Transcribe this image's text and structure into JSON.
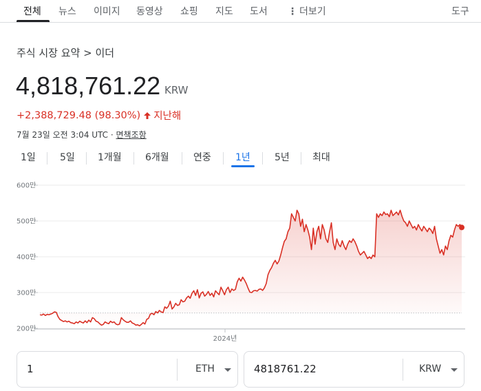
{
  "nav": {
    "tabs": [
      "전체",
      "뉴스",
      "이미지",
      "동영상",
      "쇼핑",
      "지도",
      "도서"
    ],
    "more": "더보기",
    "tools": "도구"
  },
  "breadcrumb": "주식 시장 요약 > 이더",
  "price": "4,818,761.22",
  "currency": "KRW",
  "change": {
    "text": "+2,388,729.48 (98.30%)",
    "period": "지난해",
    "color": "#d93025"
  },
  "meta": {
    "timestamp": "7월 23일 오전 3:04 UTC · ",
    "disclaimer": "면책조항"
  },
  "ranges": [
    "1일",
    "5일",
    "1개월",
    "6개월",
    "연중",
    "1년",
    "5년",
    "최대"
  ],
  "active_range": "1년",
  "chart_data": {
    "type": "area",
    "y_ticks": [
      "600만",
      "500만",
      "400만",
      "300만",
      "200만"
    ],
    "y_tick_values": [
      6000000,
      5000000,
      4000000,
      3000000,
      2000000
    ],
    "x_tick": "2024년",
    "ylim": [
      2000000,
      6000000
    ],
    "previous_close_level": 2430000,
    "line_color": "#d93025",
    "values": [
      2380000,
      2370000,
      2400000,
      2360000,
      2390000,
      2380000,
      2400000,
      2420000,
      2460000,
      2450000,
      2330000,
      2250000,
      2220000,
      2190000,
      2210000,
      2180000,
      2200000,
      2160000,
      2150000,
      2130000,
      2180000,
      2150000,
      2200000,
      2170000,
      2150000,
      2210000,
      2160000,
      2230000,
      2180000,
      2300000,
      2270000,
      2200000,
      2180000,
      2130000,
      2090000,
      2110000,
      2180000,
      2150000,
      2130000,
      2200000,
      2160000,
      2180000,
      2120000,
      2100000,
      2120000,
      2300000,
      2240000,
      2200000,
      2170000,
      2170000,
      2210000,
      2150000,
      2130000,
      2090000,
      2100000,
      2070000,
      2110000,
      2160000,
      2120000,
      2250000,
      2280000,
      2400000,
      2420000,
      2380000,
      2470000,
      2430000,
      2500000,
      2460000,
      2440000,
      2600000,
      2560000,
      2620000,
      2760000,
      2540000,
      2600000,
      2700000,
      2640000,
      2660000,
      2800000,
      2740000,
      2760000,
      2850000,
      2900000,
      2840000,
      2980000,
      3050000,
      2920000,
      3080000,
      2850000,
      2980000,
      3020000,
      2900000,
      2950000,
      3030000,
      2920000,
      2980000,
      2880000,
      3050000,
      2990000,
      2940000,
      3150000,
      3050000,
      2940000,
      3080000,
      3150000,
      3000000,
      3100000,
      3060000,
      3090000,
      3300000,
      3400000,
      3320000,
      3430000,
      3350000,
      3250000,
      3120000,
      3010000,
      3000000,
      3050000,
      3060000,
      3040000,
      3090000,
      3100000,
      3060000,
      3130000,
      3250000,
      3500000,
      3620000,
      3700000,
      3820000,
      3900000,
      3800000,
      3880000,
      4050000,
      4250000,
      4430000,
      4500000,
      4700000,
      4800000,
      5200000,
      5100000,
      5000000,
      5300000,
      5200000,
      4850000,
      5050000,
      4700000,
      4900000,
      4750000,
      4550000,
      4200000,
      4800000,
      4350000,
      4700000,
      4850000,
      4500000,
      4900000,
      4750000,
      4500000,
      4400000,
      4700000,
      4950000,
      4400000,
      4200000,
      4500000,
      4350000,
      4280000,
      4450000,
      4300000,
      4200000,
      4350000,
      4450000,
      4400000,
      4500000,
      4420000,
      4300000,
      4150000,
      4050000,
      4100000,
      4150000,
      4050000,
      3950000,
      4000000,
      3950000,
      4050000,
      4000000,
      5200000,
      5100000,
      5200000,
      5150000,
      5250000,
      5180000,
      5200000,
      5120000,
      5300000,
      5150000,
      5200000,
      5250000,
      5170000,
      5300000,
      5130000,
      5000000,
      4950000,
      4850000,
      5000000,
      4900000,
      4800000,
      4850000,
      4750000,
      4900000,
      4800000,
      4720000,
      4850000,
      4780000,
      4700000,
      4800000,
      4750000,
      4650000,
      4850000,
      4500000,
      4300000,
      4100000,
      4200000,
      4050000,
      4300000,
      4200000,
      4450000,
      4600000,
      4550000,
      4750000,
      4900000,
      4850000,
      4900000,
      4818761
    ]
  },
  "converter": {
    "left_value": "1",
    "left_unit": "ETH",
    "right_value": "4818761.22",
    "right_unit": "KRW"
  }
}
